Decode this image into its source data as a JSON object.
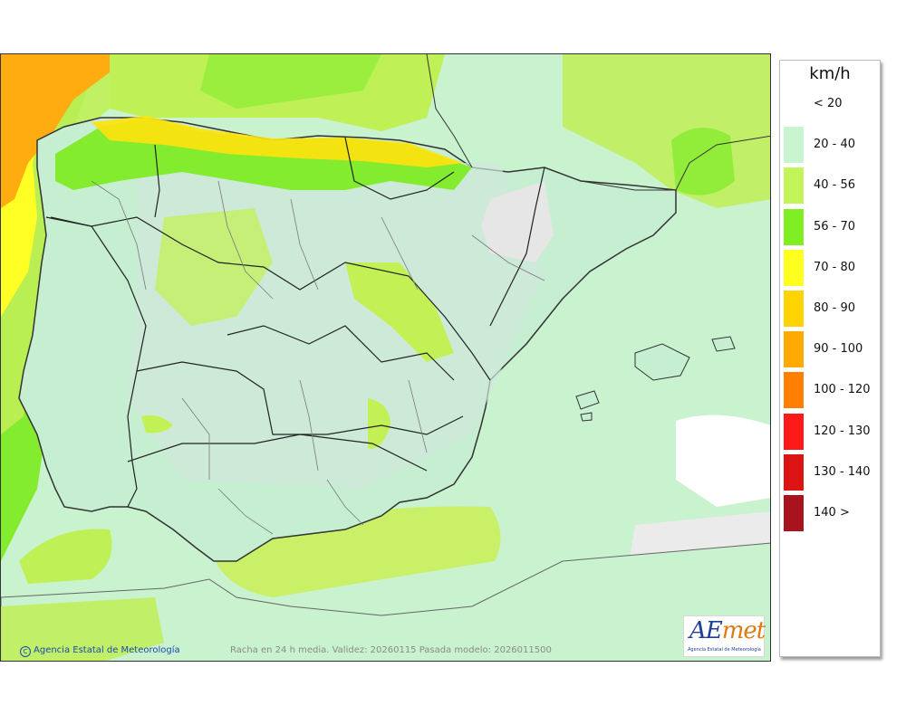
{
  "legend": {
    "unit": "km/h",
    "items": [
      {
        "label": "< 20",
        "color": "#ffffff"
      },
      {
        "label": "20 - 40",
        "color": "#c8f5cf"
      },
      {
        "label": "40 - 56",
        "color": "#c3f55a"
      },
      {
        "label": "56 - 70",
        "color": "#80ee22"
      },
      {
        "label": "70 - 80",
        "color": "#ffff1f"
      },
      {
        "label": "80 - 90",
        "color": "#ffd400"
      },
      {
        "label": "90 - 100",
        "color": "#ffaa00"
      },
      {
        "label": "100 - 120",
        "color": "#ff8000"
      },
      {
        "label": "120 - 130",
        "color": "#ff1a1a"
      },
      {
        "label": "130 - 140",
        "color": "#dc1414"
      },
      {
        "label": "140 >",
        "color": "#a8141e"
      }
    ]
  },
  "map": {
    "credit": "Agencia Estatal de Meteorología",
    "credit_icon": "copyright-icon",
    "validity": "Racha en 24 h media. Validez: 20260115 Pasada modelo: 2026011500"
  },
  "logo": {
    "word_main": "AE",
    "word_accent": "met",
    "subtitle": "Agencia Estatal de Meteorología"
  }
}
